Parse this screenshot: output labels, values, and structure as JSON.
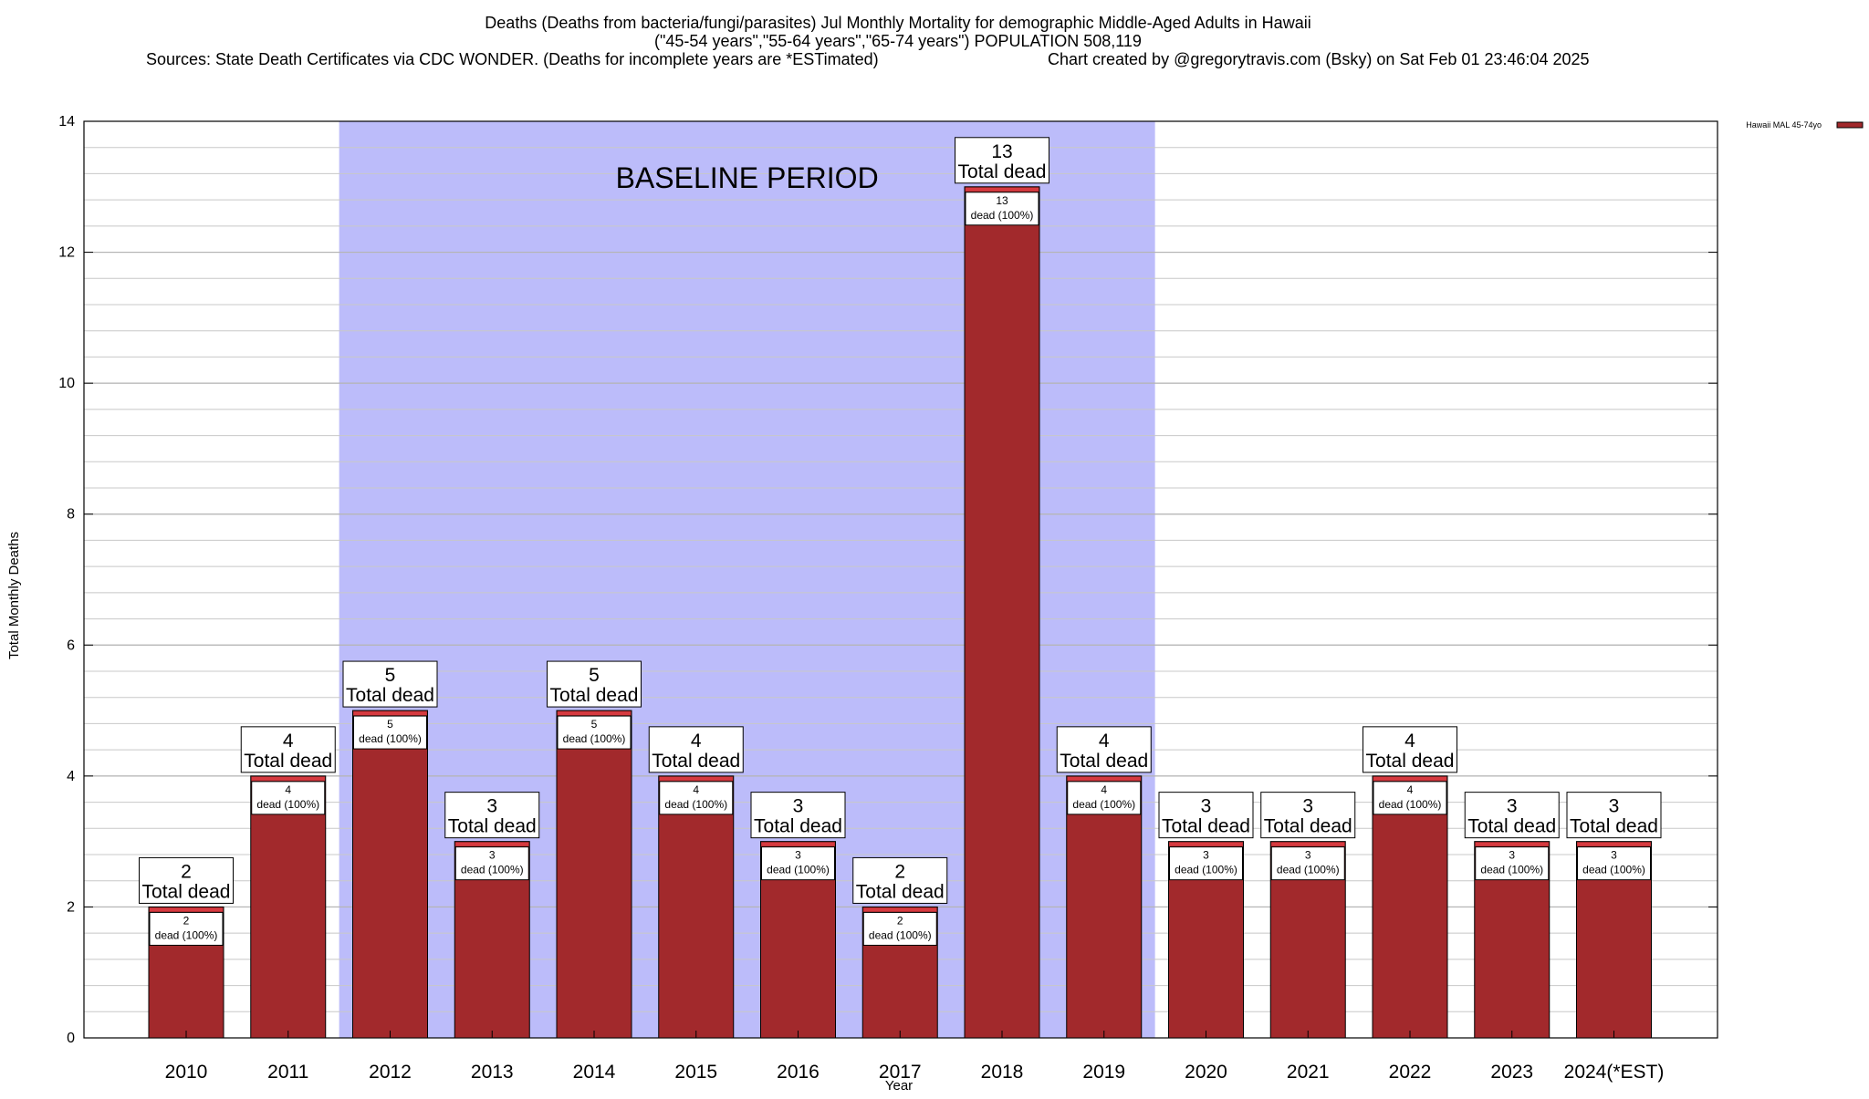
{
  "chart_data": {
    "type": "bar",
    "title": "Deaths (Deaths from bacteria/fungi/parasites) Jul Monthly Mortality for demographic Middle-Aged Adults in Hawaii",
    "subtitle": "(\"45-54 years\",\"55-64 years\",\"65-74 years\") POPULATION 508,119",
    "source": "Sources: State Death Certificates via CDC WONDER. (Deaths for incomplete years are *ESTimated)",
    "credit": "Chart created by @gregorytravis.com (Bsky) on Sat Feb 01 23:46:04 2025",
    "xlabel": "Year",
    "ylabel": "Total Monthly Deaths",
    "ylim": [
      0,
      14
    ],
    "y_major_ticks": [
      0,
      2,
      4,
      6,
      8,
      10,
      12,
      14
    ],
    "y_minor_step": 0.4,
    "grid": true,
    "legend": {
      "position": "top-right",
      "entries": [
        {
          "name": "Hawaii MAL 45-74yo",
          "color": "#a2292c"
        }
      ]
    },
    "categories": [
      "2010",
      "2011",
      "2012",
      "2013",
      "2014",
      "2015",
      "2016",
      "2017",
      "2018",
      "2019",
      "2020",
      "2021",
      "2022",
      "2023",
      "2024(*EST)"
    ],
    "series": [
      {
        "name": "Hawaii MAL 45-74yo",
        "color": "#a2292c",
        "values": [
          2,
          4,
          5,
          3,
          5,
          4,
          3,
          2,
          13,
          4,
          3,
          3,
          4,
          3,
          3
        ]
      }
    ],
    "total_label_suffix": "Total dead",
    "bar_label_suffix": "dead (100%)",
    "baseline": {
      "label": "BASELINE PERIOD",
      "start": "2012",
      "end": "2019",
      "color": "#bcbcfa"
    },
    "colors": {
      "bar": "#a2292c",
      "bar_top": "#d63a40",
      "baseline": "#bcbcfa",
      "grid": "#c8c8c8"
    }
  }
}
